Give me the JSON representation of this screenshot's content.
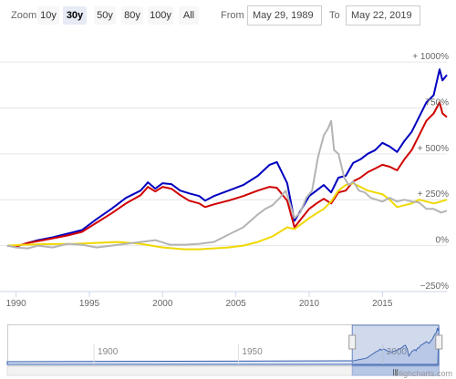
{
  "range_selector": {
    "zoom_label": "Zoom",
    "buttons": [
      "10y",
      "30y",
      "50y",
      "80y",
      "100y",
      "All"
    ],
    "active_button": "30y",
    "from_label": "From",
    "from_value": "May 29, 1989",
    "to_label": "To",
    "to_value": "May 22, 2019"
  },
  "credits": "Highcharts.com",
  "navigator": {
    "tick_labels": [
      "1900",
      "1950",
      "2000"
    ],
    "ticks": [
      1900,
      1950,
      2000
    ],
    "range": [
      1870,
      2019
    ],
    "handle_glyph": "|||",
    "handle_color": "#b7c7e6"
  },
  "chart_data": {
    "type": "line",
    "xlim": [
      1989.4,
      2019.4
    ],
    "ylim": [
      -250,
      1050
    ],
    "x_ticks": [
      1990,
      1995,
      2000,
      2005,
      2010,
      2015
    ],
    "x_tick_labels": [
      "1990",
      "1995",
      "2000",
      "2005",
      "2010",
      "2015"
    ],
    "y_ticks": [
      -250,
      0,
      250,
      500,
      750,
      1000
    ],
    "y_tick_labels": [
      "−250%",
      "0%",
      "+ 250%",
      "+ 500%",
      "750%",
      "+ 1000%"
    ],
    "grid": true,
    "series": [
      {
        "color": "#0000c0",
        "x": [
          1989.4,
          1990.0,
          1990.8,
          1991.5,
          1992.5,
          1993.5,
          1994.5,
          1995.5,
          1996.5,
          1997.5,
          1998.5,
          1999.0,
          1999.5,
          2000.0,
          2000.6,
          2001.2,
          2001.8,
          2002.5,
          2002.9,
          2003.5,
          2004.5,
          2005.5,
          2006.5,
          2007.3,
          2007.8,
          2008.5,
          2009.0,
          2009.5,
          2010.0,
          2010.5,
          2011.0,
          2011.5,
          2012.0,
          2012.5,
          2013.0,
          2013.5,
          2014.0,
          2014.5,
          2015.0,
          2015.5,
          2016.0,
          2016.5,
          2017.0,
          2017.5,
          2018.0,
          2018.5,
          2018.9,
          2019.1,
          2019.4
        ],
        "y": [
          0,
          -5,
          15,
          30,
          45,
          65,
          85,
          145,
          200,
          260,
          300,
          345,
          310,
          340,
          335,
          300,
          285,
          270,
          245,
          270,
          300,
          330,
          380,
          440,
          455,
          340,
          135,
          200,
          270,
          300,
          330,
          290,
          370,
          380,
          450,
          470,
          500,
          520,
          560,
          540,
          510,
          570,
          620,
          700,
          780,
          820,
          960,
          900,
          930
        ]
      },
      {
        "color": "#d00000",
        "x": [
          1989.4,
          1990.0,
          1990.8,
          1991.5,
          1992.5,
          1993.5,
          1994.5,
          1995.5,
          1996.5,
          1997.5,
          1998.5,
          1999.0,
          1999.5,
          2000.0,
          2000.6,
          2001.2,
          2001.8,
          2002.5,
          2002.9,
          2003.5,
          2004.5,
          2005.5,
          2006.5,
          2007.3,
          2007.8,
          2008.5,
          2009.0,
          2009.5,
          2010.0,
          2010.5,
          2011.0,
          2011.5,
          2012.0,
          2012.5,
          2013.0,
          2013.5,
          2014.0,
          2014.5,
          2015.0,
          2015.5,
          2016.0,
          2016.5,
          2017.0,
          2017.5,
          2018.0,
          2018.5,
          2018.9,
          2019.1,
          2019.4
        ],
        "y": [
          0,
          -5,
          15,
          25,
          40,
          55,
          75,
          125,
          175,
          230,
          275,
          320,
          295,
          320,
          310,
          275,
          245,
          230,
          210,
          225,
          245,
          270,
          300,
          320,
          315,
          245,
          100,
          150,
          200,
          230,
          255,
          230,
          290,
          300,
          350,
          370,
          400,
          420,
          440,
          430,
          410,
          470,
          520,
          600,
          680,
          720,
          780,
          720,
          700
        ]
      },
      {
        "color": "#f0d800",
        "x": [
          1989.4,
          1990.5,
          1992.0,
          1994.0,
          1995.5,
          1997.0,
          1998.5,
          2000.0,
          2001.5,
          2002.5,
          2003.5,
          2004.5,
          2005.5,
          2006.5,
          2007.5,
          2008.5,
          2009.0,
          2009.5,
          2010.0,
          2010.5,
          2011.0,
          2011.5,
          2012.0,
          2012.5,
          2013.0,
          2013.5,
          2014.0,
          2014.5,
          2015.0,
          2015.5,
          2016.0,
          2016.5,
          2017.0,
          2017.5,
          2018.0,
          2018.5,
          2019.0,
          2019.4
        ],
        "y": [
          0,
          5,
          8,
          10,
          15,
          20,
          10,
          -10,
          -20,
          -20,
          -15,
          -10,
          0,
          20,
          50,
          100,
          90,
          120,
          150,
          175,
          200,
          240,
          300,
          330,
          340,
          320,
          300,
          290,
          280,
          250,
          210,
          220,
          230,
          250,
          240,
          230,
          240,
          250
        ]
      },
      {
        "color": "#b4b4b4",
        "x": [
          1989.4,
          1990.0,
          1990.8,
          1991.5,
          1992.5,
          1993.5,
          1994.5,
          1995.5,
          1996.5,
          1997.5,
          1998.5,
          1999.5,
          2000.5,
          2001.5,
          2002.5,
          2003.5,
          2004.5,
          2005.5,
          2006.5,
          2007.0,
          2007.5,
          2008.0,
          2008.4,
          2008.8,
          2009.0,
          2009.4,
          2009.8,
          2010.2,
          2010.6,
          2011.0,
          2011.3,
          2011.5,
          2011.7,
          2012.0,
          2012.4,
          2012.7,
          2013.0,
          2013.4,
          2013.8,
          2014.2,
          2014.6,
          2015.0,
          2015.5,
          2016.0,
          2016.5,
          2017.0,
          2017.5,
          2018.0,
          2018.5,
          2019.0,
          2019.4
        ],
        "y": [
          0,
          -10,
          -15,
          0,
          -10,
          10,
          5,
          -10,
          0,
          10,
          20,
          30,
          5,
          5,
          10,
          20,
          60,
          100,
          170,
          200,
          220,
          260,
          300,
          200,
          150,
          180,
          260,
          300,
          480,
          600,
          640,
          680,
          520,
          500,
          370,
          330,
          350,
          300,
          290,
          260,
          250,
          240,
          260,
          240,
          250,
          240,
          235,
          200,
          200,
          180,
          190
        ]
      }
    ]
  }
}
